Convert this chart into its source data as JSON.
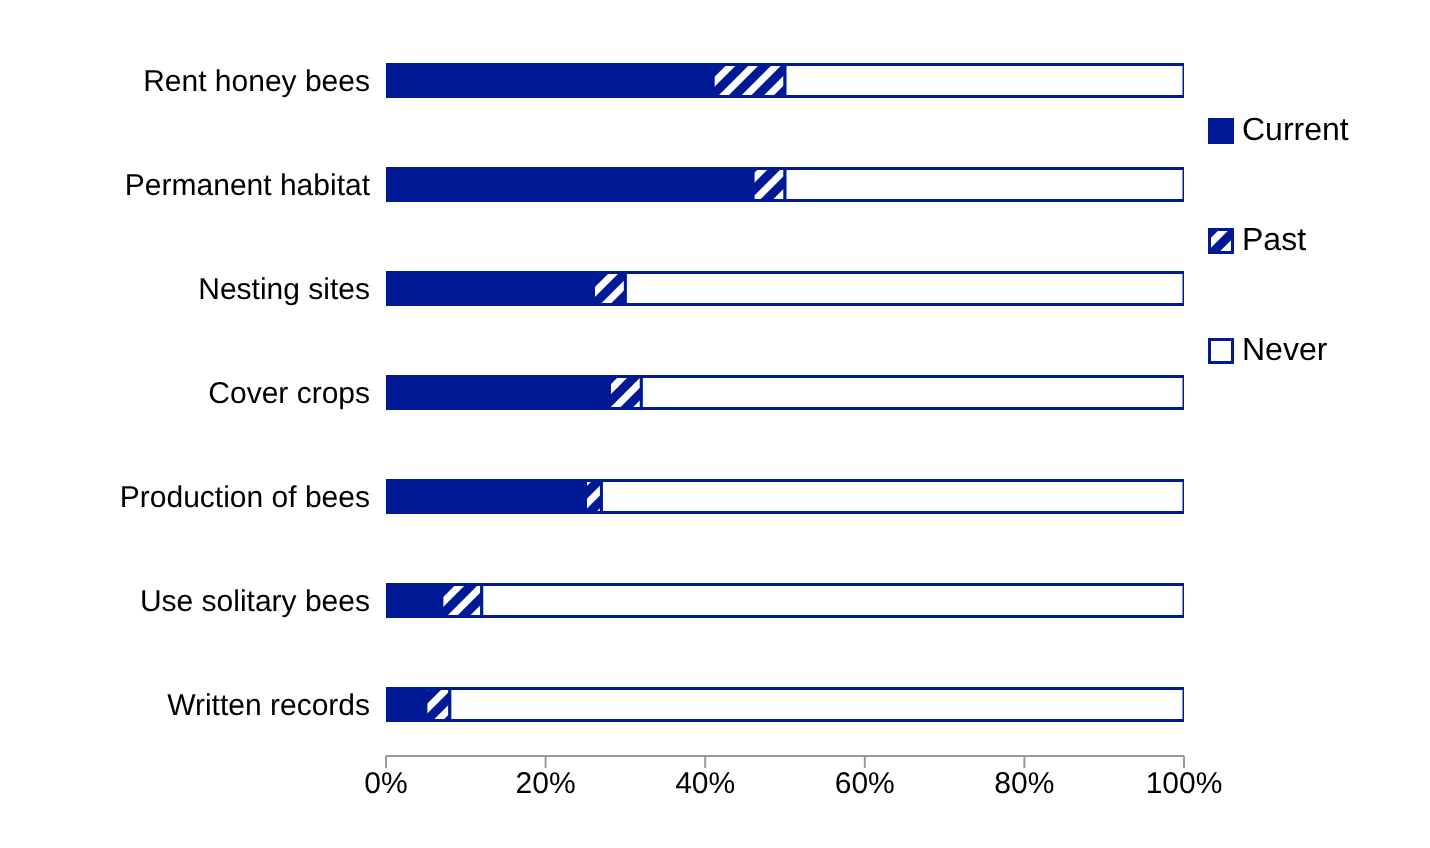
{
  "chart_data": {
    "type": "bar",
    "orientation": "horizontal",
    "stacked": true,
    "categories": [
      "Rent honey bees",
      "Permanent habitat",
      "Nesting sites",
      "Cover crops",
      "Production of bees",
      "Use solitary bees",
      "Written records"
    ],
    "series": [
      {
        "name": "Current",
        "color": "#001a96",
        "values": [
          41,
          46,
          26,
          28,
          25,
          7,
          5
        ]
      },
      {
        "name": "Past",
        "color": "#001a96",
        "values": [
          9,
          4,
          4,
          4,
          2,
          5,
          3
        ]
      },
      {
        "name": "Never",
        "color": "#ffffff",
        "values": [
          50,
          50,
          70,
          68,
          73,
          88,
          92
        ]
      }
    ],
    "xlim": [
      0,
      100
    ],
    "xticks": [
      {
        "value": 0,
        "label": "0%"
      },
      {
        "value": 20,
        "label": "20%"
      },
      {
        "value": 40,
        "label": "40%"
      },
      {
        "value": 60,
        "label": "60%"
      },
      {
        "value": 80,
        "label": "80%"
      },
      {
        "value": 100,
        "label": "100%"
      }
    ],
    "grid": false,
    "legend": "right"
  }
}
